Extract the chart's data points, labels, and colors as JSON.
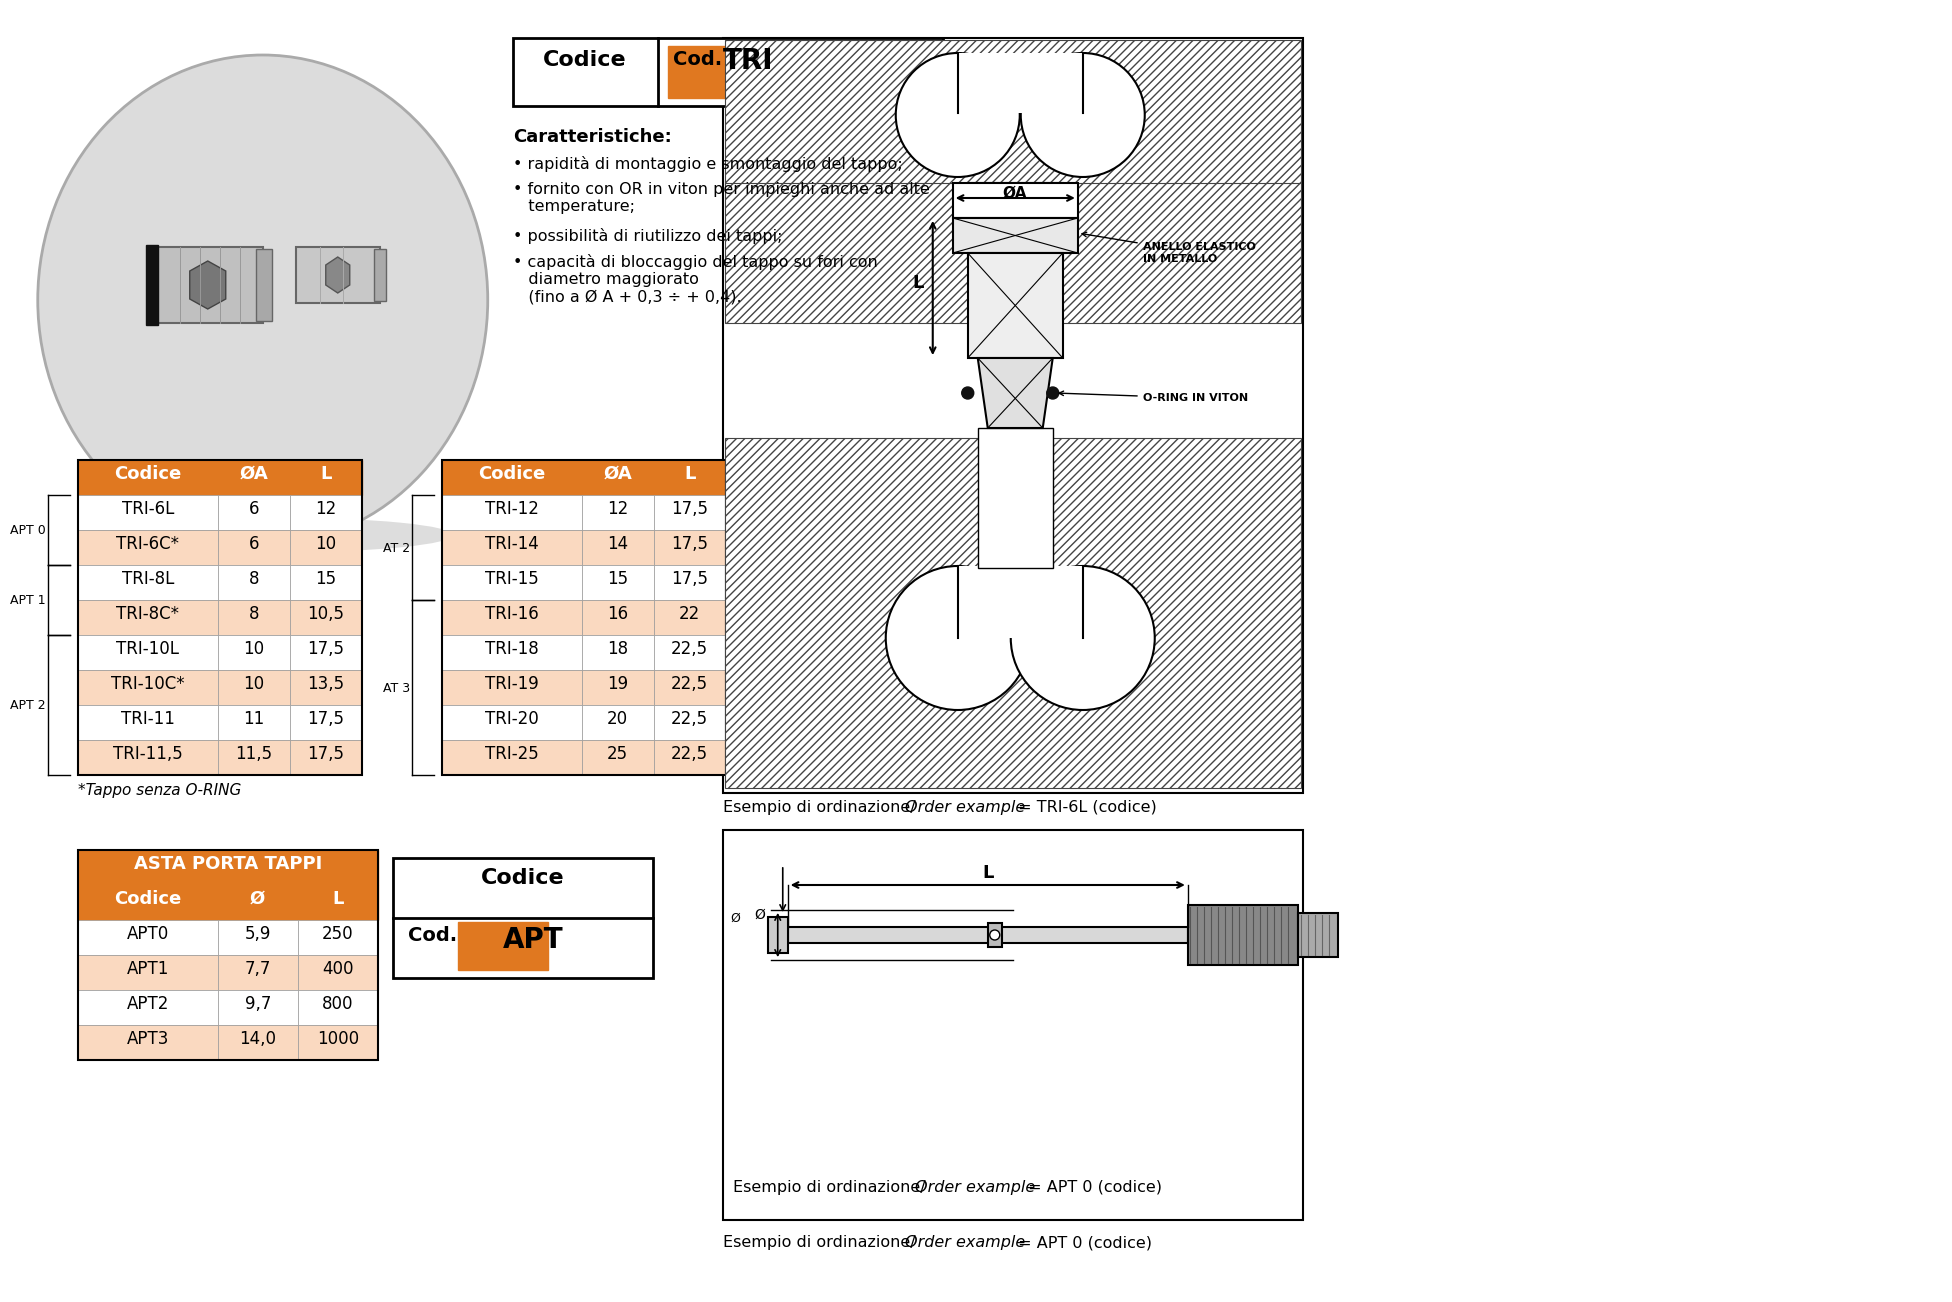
{
  "bg_color": "#ffffff",
  "orange_header": "#E07820",
  "orange_light": "#FAD9C0",
  "table1_headers": [
    "Codice",
    "ØA",
    "L"
  ],
  "table1_rows": [
    [
      "TRI-6L",
      "6",
      "12"
    ],
    [
      "TRI-6C*",
      "6",
      "10"
    ],
    [
      "TRI-8L",
      "8",
      "15"
    ],
    [
      "TRI-8C*",
      "8",
      "10,5"
    ],
    [
      "TRI-10L",
      "10",
      "17,5"
    ],
    [
      "TRI-10C*",
      "10",
      "13,5"
    ],
    [
      "TRI-11",
      "11",
      "17,5"
    ],
    [
      "TRI-11,5",
      "11,5",
      "17,5"
    ]
  ],
  "table1_apt_labels": [
    {
      "label": "APT 0",
      "rows": [
        0,
        1
      ]
    },
    {
      "label": "APT 1",
      "rows": [
        2,
        3
      ]
    },
    {
      "label": "APT 2",
      "rows": [
        4,
        5,
        6,
        7
      ]
    }
  ],
  "table1_highlight_rows": [
    1,
    3,
    5,
    7
  ],
  "table2_headers": [
    "Codice",
    "ØA",
    "L"
  ],
  "table2_rows": [
    [
      "TRI-12",
      "12",
      "17,5"
    ],
    [
      "TRI-14",
      "14",
      "17,5"
    ],
    [
      "TRI-15",
      "15",
      "17,5"
    ],
    [
      "TRI-16",
      "16",
      "22"
    ],
    [
      "TRI-18",
      "18",
      "22,5"
    ],
    [
      "TRI-19",
      "19",
      "22,5"
    ],
    [
      "TRI-20",
      "20",
      "22,5"
    ],
    [
      "TRI-25",
      "25",
      "22,5"
    ]
  ],
  "table2_at_labels": [
    {
      "label": "AT 2",
      "rows": [
        0,
        1,
        2
      ]
    },
    {
      "label": "AT 3",
      "rows": [
        3,
        4,
        5,
        6,
        7
      ]
    }
  ],
  "table2_highlight_rows": [
    1,
    3,
    5,
    7
  ],
  "footnote": "*Tappo senza O-RING",
  "apt_title": "ASTA PORTA TAPPI",
  "apt_headers": [
    "Codice",
    "Ø",
    "L"
  ],
  "apt_rows": [
    [
      "APT0",
      "5,9",
      "250"
    ],
    [
      "APT1",
      "7,7",
      "400"
    ],
    [
      "APT2",
      "9,7",
      "800"
    ],
    [
      "APT3",
      "14,0",
      "1000"
    ]
  ],
  "apt_highlight_rows": [
    1,
    3
  ]
}
